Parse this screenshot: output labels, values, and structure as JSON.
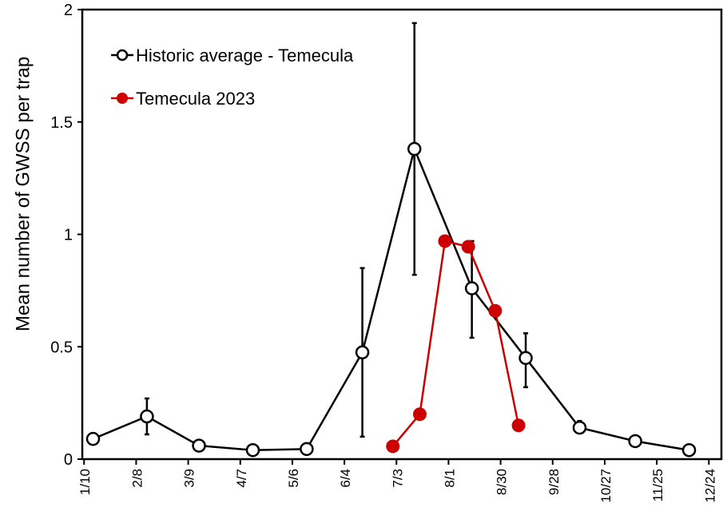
{
  "chart_data": {
    "type": "line",
    "title": "",
    "xlabel": "",
    "ylabel": "Mean number of GWSS per trap",
    "xlim_day_of_year": [
      9,
      365
    ],
    "ylim": [
      0,
      2
    ],
    "grid": false,
    "legend_placement": "top-left",
    "x_ticks": [
      {
        "day": 10,
        "label": "1/10"
      },
      {
        "day": 39,
        "label": "2/8"
      },
      {
        "day": 68,
        "label": "3/9"
      },
      {
        "day": 97,
        "label": "4/7"
      },
      {
        "day": 126,
        "label": "5/6"
      },
      {
        "day": 155,
        "label": "6/4"
      },
      {
        "day": 184,
        "label": "7/3"
      },
      {
        "day": 213,
        "label": "8/1"
      },
      {
        "day": 242,
        "label": "8/30"
      },
      {
        "day": 271,
        "label": "9/28"
      },
      {
        "day": 300,
        "label": "10/27"
      },
      {
        "day": 329,
        "label": "11/25"
      },
      {
        "day": 358,
        "label": "12/24"
      }
    ],
    "y_ticks": [
      {
        "value": 0,
        "label": "0"
      },
      {
        "value": 0.5,
        "label": "0.5"
      },
      {
        "value": 1,
        "label": "1"
      },
      {
        "value": 1.5,
        "label": "1.5"
      },
      {
        "value": 2,
        "label": "2"
      }
    ],
    "series": [
      {
        "name": "Historic average - Temecula",
        "color": "#000000",
        "marker": "open-circle",
        "x": [
          15,
          45,
          74,
          104,
          134,
          165,
          194,
          226,
          256,
          286,
          317,
          347
        ],
        "y": [
          0.09,
          0.19,
          0.06,
          0.04,
          0.045,
          0.475,
          1.38,
          0.76,
          0.45,
          0.14,
          0.08,
          0.04
        ],
        "err_low": [
          null,
          0.11,
          null,
          null,
          null,
          0.1,
          0.82,
          0.54,
          0.32,
          0.12,
          0.06,
          null
        ],
        "err_high": [
          null,
          0.27,
          null,
          null,
          null,
          0.85,
          1.94,
          0.97,
          0.56,
          0.17,
          0.1,
          null
        ]
      },
      {
        "name": "Temecula 2023",
        "color": "#cc0000",
        "marker": "filled-circle",
        "x": [
          182,
          197,
          211,
          224,
          239,
          252
        ],
        "y": [
          0.057,
          0.2,
          0.97,
          0.945,
          0.66,
          0.15
        ]
      }
    ]
  }
}
